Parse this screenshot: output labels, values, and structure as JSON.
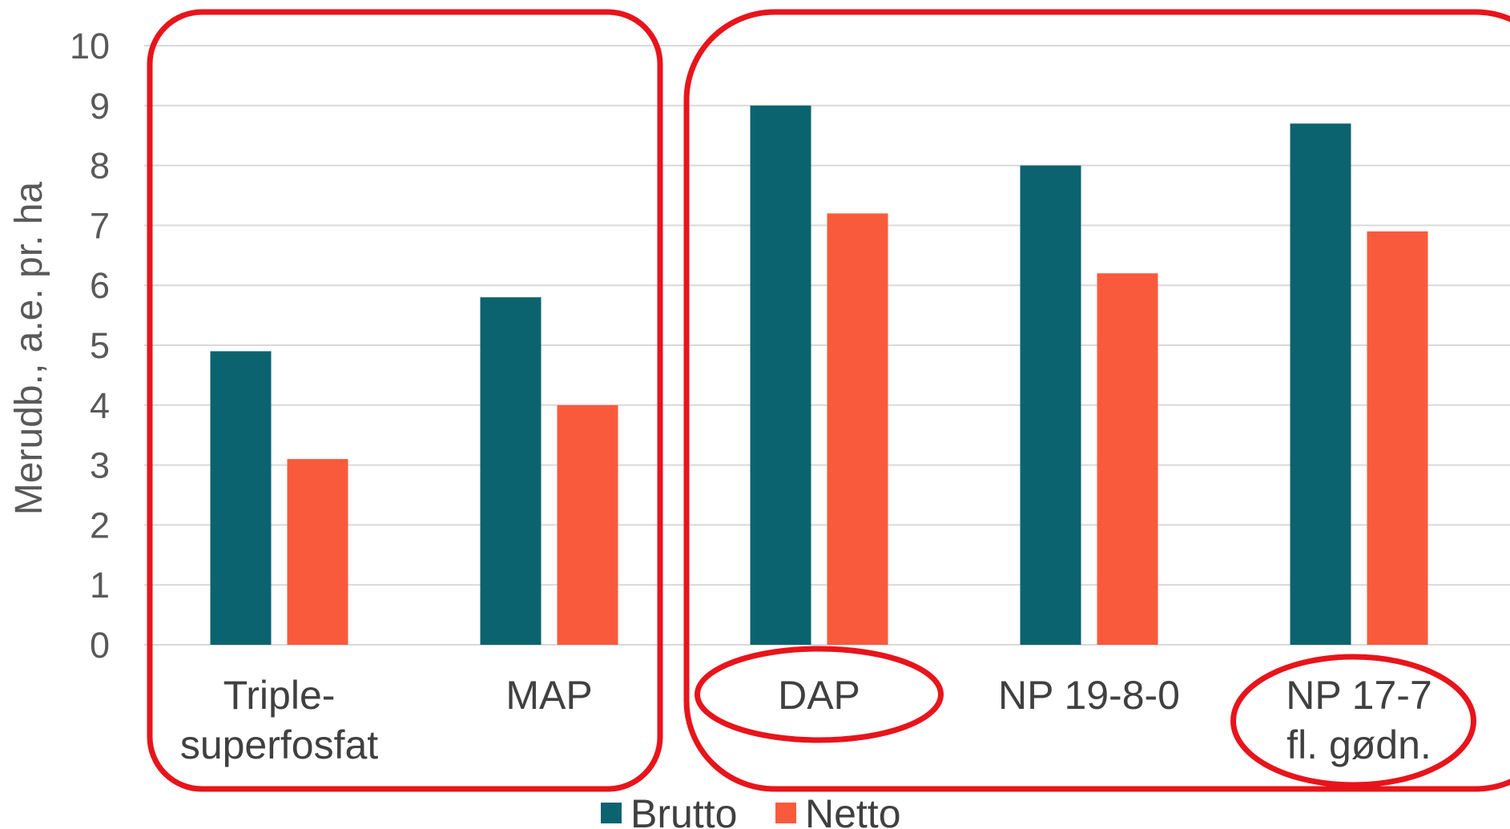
{
  "chart_data": {
    "type": "bar",
    "title": "",
    "xlabel": "",
    "ylabel": "Merudb., a.e. pr. ha",
    "ylim": [
      0,
      10
    ],
    "yticks": [
      0,
      1,
      2,
      3,
      4,
      5,
      6,
      7,
      8,
      9,
      10
    ],
    "grid": true,
    "legend_position": "bottom",
    "categories": [
      [
        "Triple-",
        "superfosfat"
      ],
      [
        "MAP"
      ],
      [
        "DAP"
      ],
      [
        "NP 19-8-0"
      ],
      [
        "NP 17-7",
        "fl. gødn."
      ]
    ],
    "series": [
      {
        "name": "Brutto",
        "color": "#0b6370",
        "values": [
          4.9,
          5.8,
          9.0,
          8.0,
          8.7
        ]
      },
      {
        "name": "Netto",
        "color": "#fa5a3c",
        "values": [
          3.1,
          4.0,
          7.2,
          6.2,
          6.9
        ]
      }
    ],
    "annotations": {
      "color": "#e8141b",
      "group_boxes": [
        {
          "categories": [
            0,
            1
          ],
          "shape": "rounded-rect"
        },
        {
          "categories": [
            2,
            3,
            4
          ],
          "shape": "rounded-rect"
        }
      ],
      "label_circles": [
        2,
        4
      ]
    }
  }
}
